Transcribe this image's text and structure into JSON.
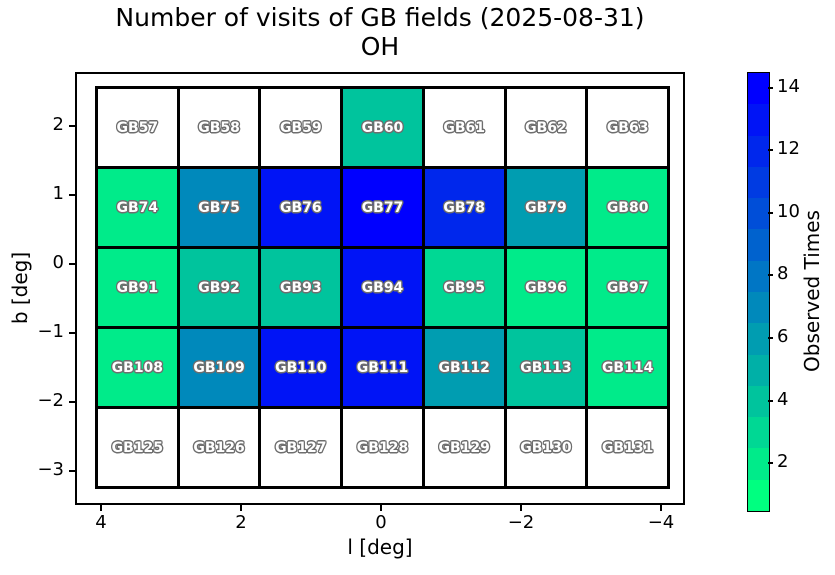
{
  "figure": {
    "title_line1": "Number of visits of GB fields (2025-08-31)",
    "title_line2": "OH",
    "background": "#ffffff",
    "grid_line_color": "#000000"
  },
  "chart_data": {
    "type": "heatmap",
    "title": "Number of visits of GB fields (2025-08-31)",
    "subtitle": "OH",
    "xlabel": "l [deg]",
    "ylabel": "b [deg]",
    "colorbar_label": "Observed Times",
    "colormap": "winter_r",
    "x_ticks": [
      "4",
      "2",
      "0",
      "−2",
      "−4"
    ],
    "y_ticks": [
      "2",
      "1",
      "0",
      "−1",
      "−2",
      "−3"
    ],
    "x_range": [
      4.4,
      -4.4
    ],
    "y_range": [
      -3.4,
      2.8
    ],
    "colorbar_ticks": [
      "2",
      "4",
      "6",
      "8",
      "10",
      "12",
      "14"
    ],
    "colorbar_tick_values": [
      2,
      4,
      6,
      8,
      10,
      12,
      14
    ],
    "colorbar_range": [
      0.5,
      14.5
    ],
    "palette": {
      "0": "#ffffff",
      "1": "#00ff80",
      "2": "#00eb8a",
      "3": "#00d894",
      "4": "#00c49d",
      "5": "#00b0a7",
      "6": "#009db1",
      "7": "#0089bb",
      "8": "#0076c5",
      "9": "#0062ce",
      "10": "#004ed8",
      "11": "#003be2",
      "12": "#0027ec",
      "13": "#0014f6",
      "14": "#0000ff"
    },
    "rows": [
      [
        {
          "label": "GB57",
          "visits": 0
        },
        {
          "label": "GB58",
          "visits": 0
        },
        {
          "label": "GB59",
          "visits": 0
        },
        {
          "label": "GB60",
          "visits": 4
        },
        {
          "label": "GB61",
          "visits": 0
        },
        {
          "label": "GB62",
          "visits": 0
        },
        {
          "label": "GB63",
          "visits": 0
        }
      ],
      [
        {
          "label": "GB74",
          "visits": 2
        },
        {
          "label": "GB75",
          "visits": 7
        },
        {
          "label": "GB76",
          "visits": 13
        },
        {
          "label": "GB77",
          "visits": 14
        },
        {
          "label": "GB78",
          "visits": 12
        },
        {
          "label": "GB79",
          "visits": 6
        },
        {
          "label": "GB80",
          "visits": 2
        }
      ],
      [
        {
          "label": "GB91",
          "visits": 2
        },
        {
          "label": "GB92",
          "visits": 4
        },
        {
          "label": "GB93",
          "visits": 4
        },
        {
          "label": "GB94",
          "visits": 13
        },
        {
          "label": "GB95",
          "visits": 3
        },
        {
          "label": "GB96",
          "visits": 2
        },
        {
          "label": "GB97",
          "visits": 2
        }
      ],
      [
        {
          "label": "GB108",
          "visits": 2
        },
        {
          "label": "GB109",
          "visits": 7
        },
        {
          "label": "GB110",
          "visits": 13
        },
        {
          "label": "GB111",
          "visits": 13
        },
        {
          "label": "GB112",
          "visits": 6
        },
        {
          "label": "GB113",
          "visits": 4
        },
        {
          "label": "GB114",
          "visits": 2
        }
      ],
      [
        {
          "label": "GB125",
          "visits": 0
        },
        {
          "label": "GB126",
          "visits": 0
        },
        {
          "label": "GB127",
          "visits": 0
        },
        {
          "label": "GB128",
          "visits": 0
        },
        {
          "label": "GB129",
          "visits": 0
        },
        {
          "label": "GB130",
          "visits": 0
        },
        {
          "label": "GB131",
          "visits": 0
        }
      ]
    ]
  }
}
